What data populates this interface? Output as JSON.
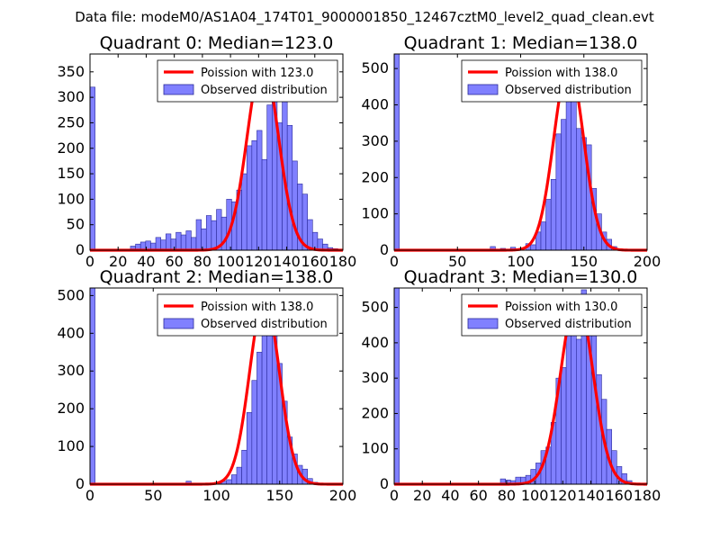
{
  "figure": {
    "suptitle": "Data file: modeM0/AS1A04_174T01_9000001850_12467cztM0_level2_quad_clean.evt"
  },
  "colors": {
    "bar_fill": "#8080ff",
    "bar_edge": "#2a2a9a",
    "poisson_line": "#ff0000",
    "axes": "#000000"
  },
  "chart_data": [
    {
      "type": "bar",
      "title": "Quadrant 0: Median=123.0",
      "median": 123.0,
      "xlim": [
        0,
        180
      ],
      "ylim": [
        0,
        385
      ],
      "xticks": [
        0,
        20,
        40,
        60,
        80,
        100,
        120,
        140,
        160,
        180
      ],
      "yticks": [
        0,
        50,
        100,
        150,
        200,
        250,
        300,
        350
      ],
      "bin_width": 3.6,
      "bins": [
        [
          0,
          320
        ],
        [
          28.8,
          8
        ],
        [
          32.4,
          12
        ],
        [
          36,
          16
        ],
        [
          39.6,
          18
        ],
        [
          43.2,
          14
        ],
        [
          46.8,
          25
        ],
        [
          50.4,
          20
        ],
        [
          54,
          32
        ],
        [
          57.6,
          22
        ],
        [
          61.2,
          35
        ],
        [
          64.8,
          30
        ],
        [
          68.4,
          38
        ],
        [
          72,
          25
        ],
        [
          75.6,
          60
        ],
        [
          79.2,
          42
        ],
        [
          82.8,
          68
        ],
        [
          86.4,
          58
        ],
        [
          90,
          80
        ],
        [
          93.6,
          65
        ],
        [
          97.2,
          100
        ],
        [
          100.8,
          95
        ],
        [
          104.4,
          118
        ],
        [
          108,
          150
        ],
        [
          111.6,
          205
        ],
        [
          115.2,
          215
        ],
        [
          118.8,
          235
        ],
        [
          122.4,
          178
        ],
        [
          126,
          285
        ],
        [
          129.6,
          310
        ],
        [
          133.2,
          250
        ],
        [
          136.8,
          325
        ],
        [
          140.4,
          245
        ],
        [
          144,
          175
        ],
        [
          147.6,
          130
        ],
        [
          151.2,
          110
        ],
        [
          154.8,
          60
        ],
        [
          158.4,
          35
        ],
        [
          162,
          22
        ],
        [
          165.6,
          12
        ],
        [
          169.2,
          5
        ],
        [
          172.8,
          3
        ]
      ],
      "poisson": {
        "mean": 123.0,
        "peak": 370,
        "sigma": 11.1
      },
      "legend": [
        "Poission with 123.0",
        "Observed distribution"
      ]
    },
    {
      "type": "bar",
      "title": "Quadrant 1: Median=138.0",
      "median": 138.0,
      "xlim": [
        0,
        200
      ],
      "ylim": [
        0,
        540
      ],
      "xticks": [
        0,
        50,
        100,
        150,
        200
      ],
      "yticks": [
        0,
        100,
        200,
        300,
        400,
        500
      ],
      "bin_width": 4,
      "bins": [
        [
          0,
          540
        ],
        [
          76,
          10
        ],
        [
          84,
          5
        ],
        [
          92,
          8
        ],
        [
          104,
          18
        ],
        [
          108,
          15
        ],
        [
          112,
          50
        ],
        [
          116,
          78
        ],
        [
          120,
          140
        ],
        [
          124,
          195
        ],
        [
          128,
          320
        ],
        [
          132,
          360
        ],
        [
          136,
          420
        ],
        [
          140,
          510
        ],
        [
          144,
          335
        ],
        [
          148,
          310
        ],
        [
          152,
          290
        ],
        [
          156,
          170
        ],
        [
          160,
          100
        ],
        [
          164,
          50
        ],
        [
          168,
          30
        ],
        [
          172,
          10
        ]
      ],
      "poisson": {
        "mean": 138.0,
        "peak": 510,
        "sigma": 11.75
      },
      "legend": [
        "Poission with 138.0",
        "Observed distribution"
      ]
    },
    {
      "type": "bar",
      "title": "Quadrant 2: Median=138.0",
      "median": 138.0,
      "xlim": [
        0,
        200
      ],
      "ylim": [
        0,
        520
      ],
      "xticks": [
        0,
        50,
        100,
        150,
        200
      ],
      "yticks": [
        0,
        100,
        200,
        300,
        400,
        500
      ],
      "bin_width": 4,
      "bins": [
        [
          0,
          520
        ],
        [
          76,
          8
        ],
        [
          100,
          5
        ],
        [
          104,
          8
        ],
        [
          108,
          12
        ],
        [
          112,
          25
        ],
        [
          116,
          45
        ],
        [
          120,
          90
        ],
        [
          124,
          190
        ],
        [
          128,
          275
        ],
        [
          132,
          350
        ],
        [
          136,
          445
        ],
        [
          140,
          490
        ],
        [
          144,
          400
        ],
        [
          148,
          320
        ],
        [
          152,
          220
        ],
        [
          156,
          125
        ],
        [
          160,
          80
        ],
        [
          164,
          50
        ],
        [
          168,
          40
        ],
        [
          172,
          15
        ],
        [
          176,
          5
        ]
      ],
      "poisson": {
        "mean": 138.0,
        "peak": 492,
        "sigma": 11.75
      },
      "legend": [
        "Poission with 138.0",
        "Observed distribution"
      ]
    },
    {
      "type": "bar",
      "title": "Quadrant 3: Median=130.0",
      "median": 130.0,
      "xlim": [
        0,
        180
      ],
      "ylim": [
        0,
        555
      ],
      "xticks": [
        0,
        20,
        40,
        60,
        80,
        100,
        120,
        140,
        160,
        180
      ],
      "yticks": [
        0,
        100,
        200,
        300,
        400,
        500
      ],
      "bin_width": 3.6,
      "bins": [
        [
          0,
          555
        ],
        [
          75.6,
          15
        ],
        [
          79.2,
          12
        ],
        [
          82.8,
          10
        ],
        [
          86.4,
          20
        ],
        [
          90,
          20
        ],
        [
          93.6,
          25
        ],
        [
          97.2,
          42
        ],
        [
          100.8,
          60
        ],
        [
          104.4,
          95
        ],
        [
          108,
          105
        ],
        [
          111.6,
          175
        ],
        [
          115.2,
          300
        ],
        [
          118.8,
          330
        ],
        [
          122.4,
          480
        ],
        [
          126,
          510
        ],
        [
          129.6,
          410
        ],
        [
          133.2,
          550
        ],
        [
          136.8,
          445
        ],
        [
          140.4,
          420
        ],
        [
          144,
          310
        ],
        [
          147.6,
          240
        ],
        [
          151.2,
          155
        ],
        [
          154.8,
          95
        ],
        [
          158.4,
          50
        ],
        [
          162,
          30
        ],
        [
          165.6,
          10
        ]
      ],
      "poisson": {
        "mean": 130.0,
        "peak": 528,
        "sigma": 11.4
      },
      "legend": [
        "Poission with 130.0",
        "Observed distribution"
      ]
    }
  ]
}
